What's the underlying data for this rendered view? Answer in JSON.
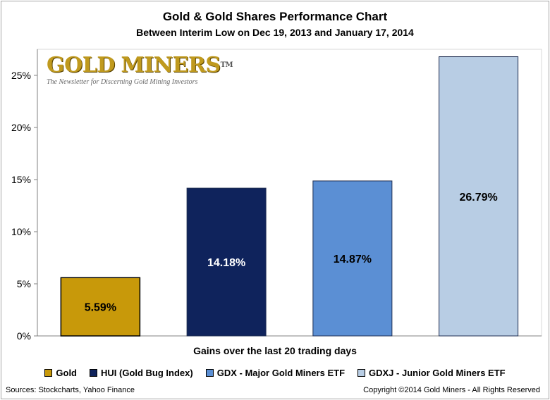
{
  "header": {
    "title": "Gold & Gold Shares Performance Chart",
    "subtitle": "Between Interim Low on Dec 19, 2013 and January 17, 2014"
  },
  "logo": {
    "name_part1": "GOLD",
    "name_part2": "MINERS",
    "trademark": "TM",
    "tagline": "The Newsletter for Discerning Gold Mining Investors"
  },
  "chart_data": {
    "type": "bar",
    "title": "Gold & Gold Shares Performance Chart",
    "subtitle": "Between Interim Low on Dec 19, 2013 and January 17, 2014",
    "xlabel": "Gains over the last 20 trading days",
    "ylabel": "",
    "ylim": [
      0,
      27.5
    ],
    "yticks": [
      0,
      5,
      10,
      15,
      20,
      25
    ],
    "ytick_labels": [
      "0%",
      "5%",
      "10%",
      "15%",
      "20%",
      "25%"
    ],
    "grid": false,
    "legend_position": "bottom",
    "categories": [
      "Gold",
      "HUI (Gold Bug Index)",
      "GDX - Major Gold Miners ETF",
      "GDXJ - Junior Gold Miners ETF"
    ],
    "values": [
      5.59,
      14.18,
      14.87,
      26.79
    ],
    "value_labels": [
      "5.59%",
      "14.18%",
      "14.87%",
      "26.79%"
    ],
    "colors": [
      "#c8990a",
      "#0f235c",
      "#5b8fd4",
      "#b8cde4"
    ],
    "label_colors": [
      "#000000",
      "#ffffff",
      "#000000",
      "#000000"
    ]
  },
  "footer": {
    "sources": "Sources:  Stockcharts, Yahoo Finance",
    "copyright": "Copyright ©2014  Gold Miners - All Rights Reserved"
  }
}
